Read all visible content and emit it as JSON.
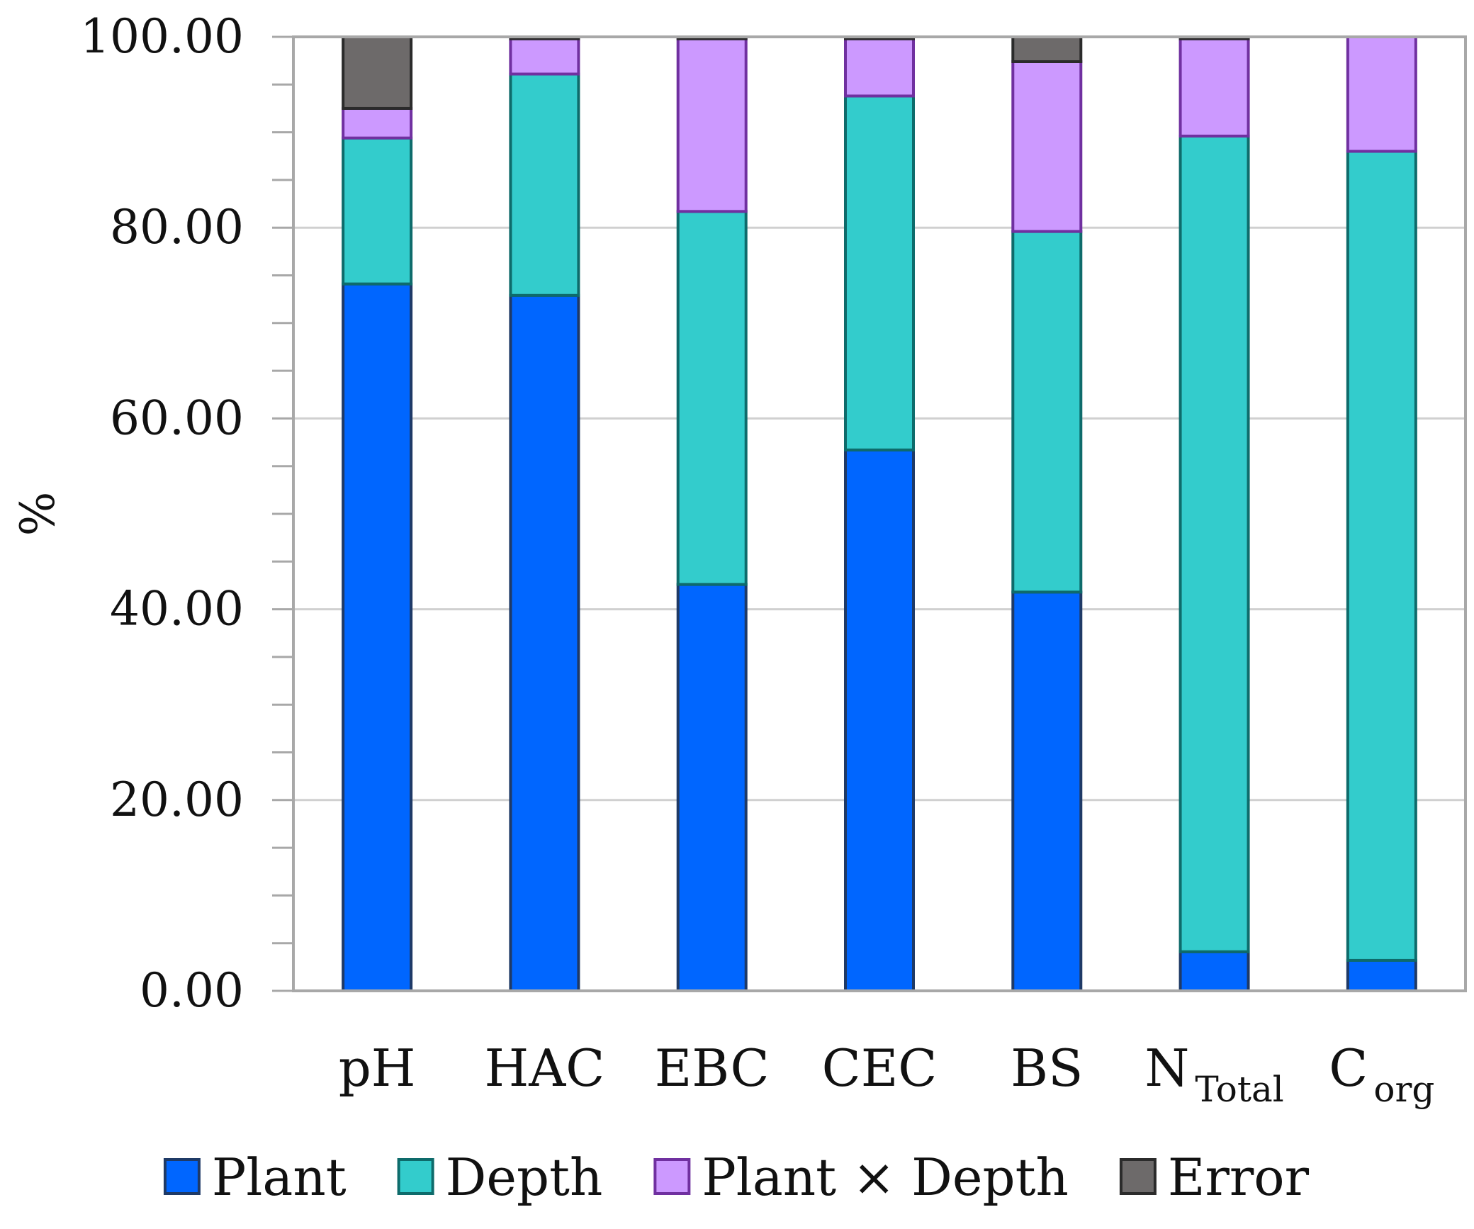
{
  "chart_data": {
    "type": "bar",
    "stacked": true,
    "categories": [
      {
        "main": "pH",
        "sub": ""
      },
      {
        "main": "HAC",
        "sub": ""
      },
      {
        "main": "EBC",
        "sub": ""
      },
      {
        "main": "CEC",
        "sub": ""
      },
      {
        "main": "BS",
        "sub": ""
      },
      {
        "main": "N",
        "sub": "Total"
      },
      {
        "main": "C",
        "sub": "org"
      }
    ],
    "series": [
      {
        "name": "Plant",
        "color": "#0066ff",
        "stroke": "#1f3a66",
        "values": [
          74.1,
          72.9,
          42.6,
          56.7,
          41.8,
          4.1,
          3.2
        ]
      },
      {
        "name": "Depth",
        "color": "#33cccc",
        "stroke": "#0e6b6b",
        "values": [
          15.3,
          23.2,
          39.1,
          37.1,
          37.8,
          85.5,
          84.8
        ]
      },
      {
        "name": "Plant × Depth",
        "color": "#cc99ff",
        "stroke": "#7030a0",
        "values": [
          3.1,
          3.7,
          18.1,
          6.0,
          17.8,
          10.2,
          12.0
        ]
      },
      {
        "name": "Error",
        "color": "#6d6a6a",
        "stroke": "#2b2b2b",
        "values": [
          7.5,
          0.2,
          0.2,
          0.2,
          2.6,
          0.2,
          0.0
        ]
      }
    ],
    "ylabel": "%",
    "xlabel": "",
    "title": "",
    "ylim": [
      0,
      100
    ],
    "yticks": [
      "0.00",
      "20.00",
      "40.00",
      "60.00",
      "80.00",
      "100.00"
    ],
    "grid": true,
    "legend_position": "bottom"
  }
}
